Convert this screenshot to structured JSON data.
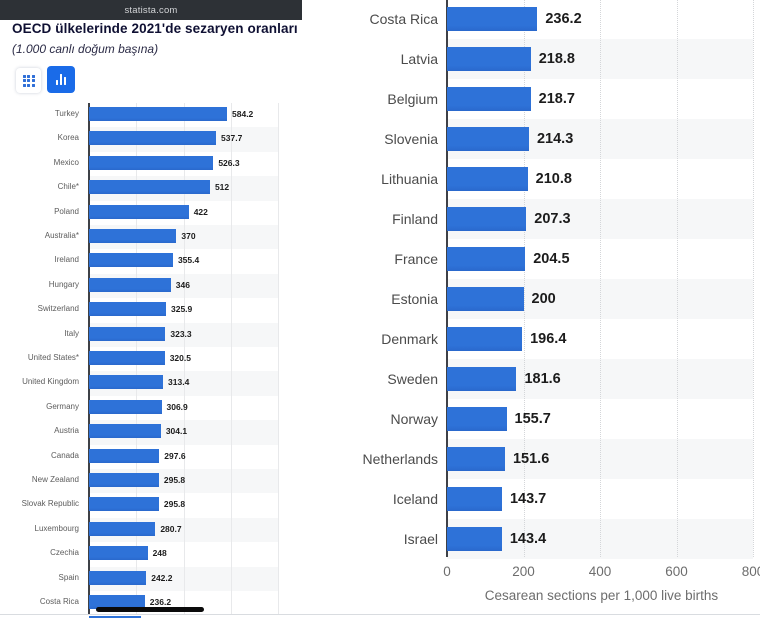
{
  "header": {
    "site": "statista.com"
  },
  "left_panel": {
    "title": "OECD ülkelerinde 2021'de sezaryen oranları",
    "subtitle": "(1.000 canlı doğum başına)",
    "toolbar": {
      "buttons": [
        "table-view",
        "chart-view"
      ],
      "active": "chart-view"
    }
  },
  "colors": {
    "bar": "#2e72d8",
    "bar_bottom": "#2a68cc",
    "button_active": "#1a6be8",
    "icon_blue": "#2f6fd8",
    "site_bar": "#2d3136",
    "band": "#f6f7f8",
    "grid_left": "#e8e9eb",
    "grid_right": "#d4d6d9",
    "axis": "#3e4147"
  },
  "chart_data": [
    {
      "type": "bar",
      "orientation": "horizontal",
      "title": "OECD ülkelerinde 2021'de sezaryen oranları",
      "subtitle": "(1.000 canlı doğum başına)",
      "categories": [
        "Turkey",
        "Korea",
        "Mexico",
        "Chile*",
        "Poland",
        "Australia*",
        "Ireland",
        "Hungary",
        "Switzerland",
        "Italy",
        "United States*",
        "United Kingdom",
        "Germany",
        "Austria",
        "Canada",
        "New Zealand",
        "Slovak Republic",
        "Luxembourg",
        "Czechia",
        "Spain",
        "Costa Rica"
      ],
      "values": [
        584.2,
        537.7,
        526.3,
        512,
        422,
        370,
        355.4,
        346,
        325.9,
        323.3,
        320.5,
        313.4,
        306.9,
        304.1,
        297.6,
        295.8,
        295.8,
        280.7,
        248,
        242.2,
        236.2
      ],
      "xlim": [
        0,
        800
      ],
      "gridline_values": [
        200,
        400,
        600,
        800
      ],
      "value_labels": true,
      "legend": "none",
      "next_row_partial": {
        "category": "Latvia",
        "value": 218.8
      }
    },
    {
      "type": "bar",
      "orientation": "horizontal",
      "categories": [
        "Costa Rica",
        "Latvia",
        "Belgium",
        "Slovenia",
        "Lithuania",
        "Finland",
        "France",
        "Estonia",
        "Denmark",
        "Sweden",
        "Norway",
        "Netherlands",
        "Iceland",
        "Israel"
      ],
      "values": [
        236.2,
        218.8,
        218.7,
        214.3,
        210.8,
        207.3,
        204.5,
        200,
        196.4,
        181.6,
        155.7,
        151.6,
        143.7,
        143.4
      ],
      "xlabel": "Cesarean sections per 1,000 live births",
      "x_ticks": [
        0,
        200,
        400,
        600,
        800
      ],
      "xlim": [
        0,
        800
      ],
      "gridline_values": [
        200,
        400,
        600,
        800
      ],
      "value_labels": true,
      "legend": "none"
    }
  ]
}
